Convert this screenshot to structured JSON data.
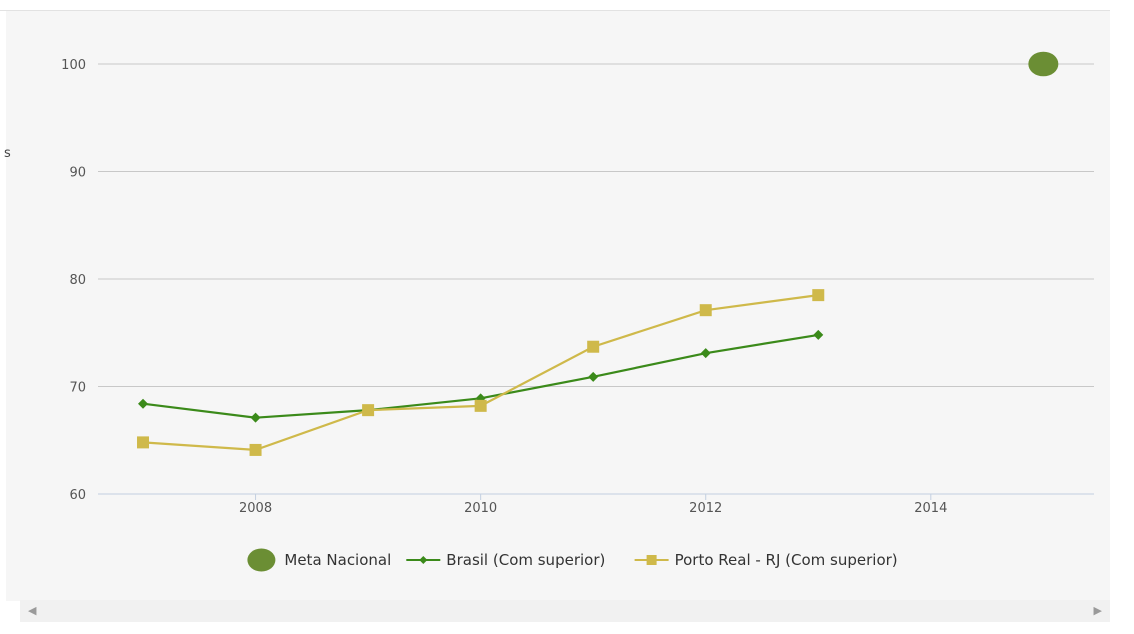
{
  "chart_data": {
    "type": "line",
    "title": "",
    "xlabel": "",
    "ylabel": "",
    "xlim": [
      2006.6,
      2015.45
    ],
    "ylim": [
      60,
      100
    ],
    "x_ticks": [
      "2008",
      "2010",
      "2012",
      "2014"
    ],
    "y_ticks": [
      "60",
      "70",
      "80",
      "90",
      "100"
    ],
    "grid": true,
    "legend_position": "bottom",
    "series": [
      {
        "name": "Meta Nacional",
        "marker": "circle",
        "color": "#6b8e34",
        "points": [
          {
            "x": 2015,
            "y": 100
          }
        ]
      },
      {
        "name": "Brasil (Com superior)",
        "marker": "diamond",
        "color": "#3b8a1a",
        "points": [
          {
            "x": 2007,
            "y": 68.4
          },
          {
            "x": 2008,
            "y": 67.1
          },
          {
            "x": 2009,
            "y": 67.8
          },
          {
            "x": 2010,
            "y": 68.9
          },
          {
            "x": 2011,
            "y": 70.9
          },
          {
            "x": 2012,
            "y": 73.1
          },
          {
            "x": 2013,
            "y": 74.8
          }
        ]
      },
      {
        "name": "Porto Real - RJ (Com superior)",
        "marker": "square",
        "color": "#cfb94a",
        "points": [
          {
            "x": 2007,
            "y": 64.8
          },
          {
            "x": 2008,
            "y": 64.1
          },
          {
            "x": 2009,
            "y": 67.8
          },
          {
            "x": 2010,
            "y": 68.2
          },
          {
            "x": 2011,
            "y": 73.7
          },
          {
            "x": 2012,
            "y": 77.1
          },
          {
            "x": 2013,
            "y": 78.5
          }
        ]
      }
    ]
  },
  "ui": {
    "cut_label": "s",
    "scroll_left": "◀",
    "scroll_right": "▶"
  }
}
